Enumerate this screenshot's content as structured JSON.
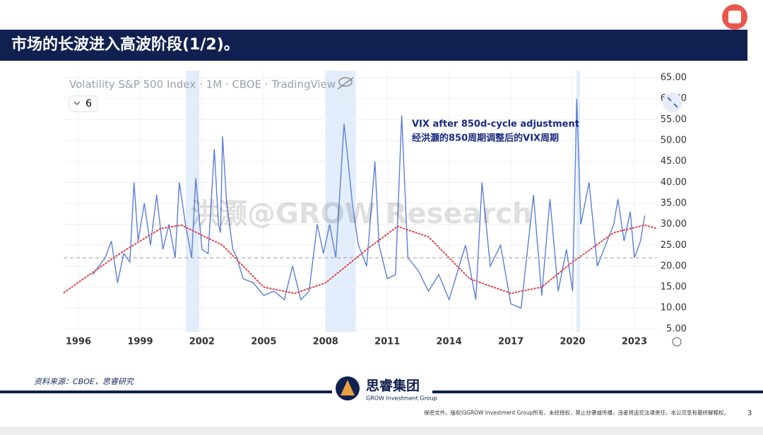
{
  "header": {
    "title": "市场的长波进入高波阶段(1/2)。"
  },
  "chart_data": {
    "type": "line",
    "title": "Volatility S&P 500 Index · 1M · CBOE · TradingView",
    "interval": "6",
    "annotations": [
      "VIX after 850d-cycle adjustment",
      "经洪灏的850周期调整后的VIX周期"
    ],
    "watermark": "洪灏@GROW Research",
    "xlim": [
      1995.28,
      2024.1
    ],
    "xticks": [
      1996,
      1999,
      2002,
      2005,
      2008,
      2011,
      2014,
      2017,
      2020,
      2023
    ],
    "ylim": [
      4.3,
      66.7
    ],
    "yticks": [
      {
        "value": 5,
        "label": "5.00"
      },
      {
        "value": 10,
        "label": "10.00"
      },
      {
        "value": 15,
        "label": "15.00"
      },
      {
        "value": 20,
        "label": "20.00"
      },
      {
        "value": 25,
        "label": "25.00"
      },
      {
        "value": 30,
        "label": "30.00"
      },
      {
        "value": 35,
        "label": "35.00"
      },
      {
        "value": 40,
        "label": "40.00"
      },
      {
        "value": 45,
        "label": "45.00"
      },
      {
        "value": 50,
        "label": "50.00"
      },
      {
        "value": 55,
        "label": "55.00"
      },
      {
        "value": 60,
        "label": "60.00"
      },
      {
        "value": 65,
        "label": "65.00"
      }
    ],
    "hline": 22,
    "bands": [
      [
        2001.22,
        2001.87
      ],
      [
        2008.0,
        2009.47
      ],
      [
        2020.19,
        2020.36
      ]
    ],
    "series": [
      {
        "color": "#5b7fd6",
        "style": "solid",
        "x": [
          1996.7,
          1997.0,
          1997.3,
          1997.6,
          1997.9,
          1998.2,
          1998.5,
          1998.7,
          1998.9,
          1999.2,
          1999.5,
          1999.8,
          2000.1,
          2000.4,
          2000.7,
          2000.9,
          2001.2,
          2001.5,
          2001.7,
          2002.0,
          2002.3,
          2002.6,
          2002.8,
          2002.9,
          2003.0,
          2003.2,
          2003.5,
          2003.7,
          2004.0,
          2004.5,
          2005.0,
          2005.5,
          2006.0,
          2006.4,
          2006.8,
          2007.2,
          2007.6,
          2007.9,
          2008.2,
          2008.5,
          2008.9,
          2009.1,
          2009.3,
          2009.6,
          2010.0,
          2010.4,
          2010.6,
          2011.0,
          2011.4,
          2011.7,
          2012.0,
          2012.5,
          2013.0,
          2013.5,
          2014.0,
          2014.8,
          2015.3,
          2015.6,
          2016.0,
          2016.5,
          2017.0,
          2017.5,
          2018.1,
          2018.5,
          2018.9,
          2019.3,
          2019.7,
          2020.0,
          2020.2,
          2020.4,
          2020.8,
          2021.2,
          2021.6,
          2022.0,
          2022.2,
          2022.5,
          2022.8,
          2023.0,
          2023.3,
          2023.5
        ],
        "values": [
          18,
          20,
          22,
          26,
          16,
          23,
          21,
          40,
          26,
          35,
          25,
          37,
          24,
          30,
          22,
          40,
          30,
          22,
          41,
          24,
          23,
          48,
          30,
          28,
          51,
          35,
          24,
          22,
          17,
          16,
          13,
          14,
          12,
          20,
          12,
          14,
          30,
          23,
          30,
          22,
          54,
          45,
          35,
          25,
          20,
          45,
          25,
          17,
          18,
          56,
          22,
          19,
          14,
          18,
          12,
          25,
          12,
          40,
          20,
          25,
          11,
          10,
          37,
          13,
          36,
          14,
          24,
          14,
          60,
          30,
          40,
          20,
          25,
          30,
          36,
          26,
          33,
          22,
          26,
          32
        ]
      },
      {
        "color": "#e0454a",
        "style": "dotted",
        "x": [
          1995.3,
          1998,
          2000,
          2001,
          2003,
          2005,
          2006.5,
          2008,
          2010,
          2011.5,
          2013,
          2015,
          2017,
          2018.5,
          2020,
          2022,
          2023.5,
          2024.1
        ],
        "values": [
          13.7,
          23,
          29,
          29.8,
          25,
          15,
          13.5,
          16,
          24,
          29.5,
          27,
          17,
          13.5,
          15,
          21,
          28,
          29.8,
          29
        ]
      }
    ],
    "source": "资料来源：CBOE，思睿研究"
  },
  "footer": {
    "logo": "思睿集团",
    "logo_sub": "GROW Investment Group",
    "disclaimer": "保密文件。版权归GROW Investment Group所有，未经授权，禁止抄袭或传播，违者将追究法律责任，本公司享有最终解释权。",
    "page": "3"
  }
}
